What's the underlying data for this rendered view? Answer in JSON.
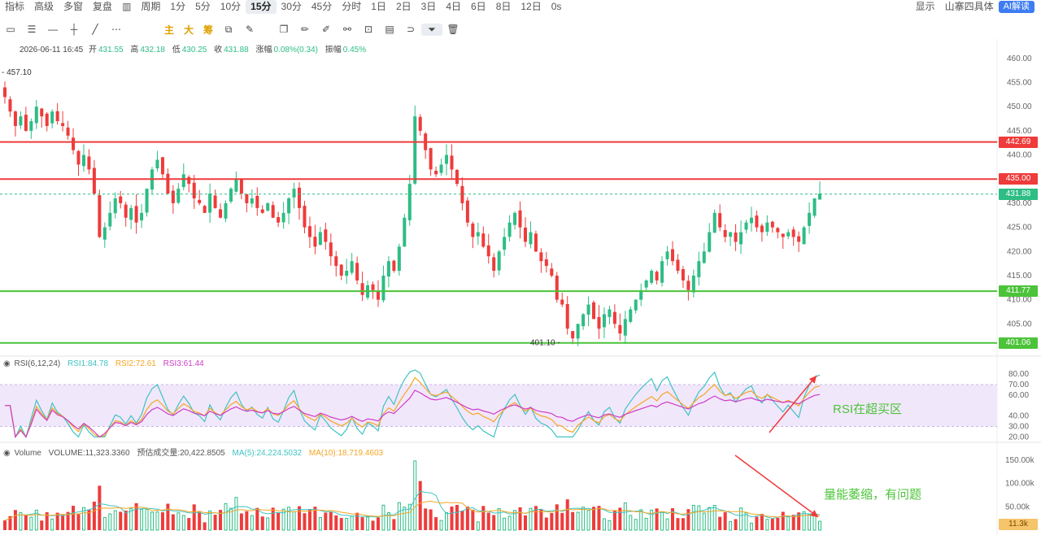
{
  "topbar": {
    "items": [
      "指标",
      "高级",
      "多窗",
      "复盘",
      "",
      "周期",
      "1分",
      "5分",
      "10分",
      "15分",
      "30分",
      "45分",
      "分时",
      "1日",
      "2日",
      "3日",
      "4日",
      "6日",
      "8日",
      "12日",
      "0s"
    ],
    "active_index": 9,
    "right_items": [
      "显示",
      "山寨四具体"
    ],
    "ai_button": "AI解读"
  },
  "toolbar": {
    "text_tools": [
      "主",
      "大",
      "筹"
    ]
  },
  "ohlc": {
    "date": "2026-06-11 16:45",
    "open_label": "开",
    "open": "431.55",
    "high_label": "高",
    "high": "432.18",
    "low_label": "低",
    "low": "430.25",
    "close_label": "收",
    "close": "431.88",
    "change_label": "涨幅",
    "change": "0.08%(0.34)",
    "amp_label": "振幅",
    "amp": "0.45%"
  },
  "price_axis": {
    "ticks": [
      "460.00",
      "455.00",
      "450.00",
      "445.00",
      "440.00",
      "430.00",
      "425.00",
      "420.00",
      "415.00",
      "410.00",
      "405.00"
    ],
    "tick_values": [
      460,
      455,
      450,
      445,
      440,
      430,
      425,
      420,
      415,
      410,
      405
    ],
    "range": [
      400,
      462
    ]
  },
  "levels": [
    {
      "label": "442.69",
      "value": 442.69,
      "color": "#ef3b3b"
    },
    {
      "label": "435.00",
      "value": 435.0,
      "color": "#ef3b3b"
    },
    {
      "label": "411.77",
      "value": 411.77,
      "color": "#4cc33a"
    },
    {
      "label": "401.06",
      "value": 401.06,
      "color": "#4cc33a"
    }
  ],
  "current_price": {
    "label": "431.88",
    "value": 431.88,
    "color": "#2dbd85"
  },
  "markers": {
    "high": "457.10",
    "low": "401.10"
  },
  "candles": {
    "up_color": "#2dbd85",
    "down_color": "#ef3b3b",
    "closes": [
      452,
      449,
      446,
      448,
      445,
      447,
      450,
      448,
      446,
      449,
      447,
      446,
      444,
      441,
      438,
      440,
      437,
      432,
      423,
      425,
      428,
      431,
      430,
      427,
      429,
      426,
      428,
      433,
      437,
      439,
      436,
      432,
      430,
      433,
      436,
      434,
      431,
      430,
      428,
      432,
      429,
      427,
      430,
      433,
      435,
      432,
      430,
      431,
      429,
      428,
      430,
      427,
      426,
      428,
      431,
      433,
      429,
      425,
      423,
      421,
      424,
      422,
      419,
      417,
      415,
      416,
      418,
      414,
      411,
      413,
      412,
      410,
      415,
      418,
      416,
      421,
      427,
      434,
      448,
      445,
      441,
      437,
      436,
      438,
      440,
      437,
      434,
      430,
      426,
      423,
      424,
      421,
      419,
      416,
      420,
      423,
      426,
      428,
      425,
      422,
      424,
      420,
      418,
      417,
      415,
      410,
      409,
      404,
      402,
      405,
      407,
      409,
      406,
      404,
      407,
      408,
      405,
      403,
      406,
      408,
      410,
      412,
      414,
      416,
      414,
      418,
      420,
      418,
      416,
      414,
      412,
      415,
      418,
      420,
      424,
      428,
      425,
      423,
      424,
      422,
      424,
      426,
      427,
      425,
      424,
      426,
      425,
      424,
      423,
      424,
      423,
      422,
      425,
      428,
      431,
      432
    ],
    "last_close": 431.88
  },
  "rsi": {
    "header": "RSI(6,12,24)",
    "rsi1_label": "RSI1:84.78",
    "rsi1_color": "#3fc3c3",
    "rsi2_label": "RSI2:72.61",
    "rsi2_color": "#f5a623",
    "rsi3_label": "RSI3:61.44",
    "rsi3_color": "#cf3cc6",
    "ticks": [
      "80.00",
      "70.00",
      "60.00",
      "40.00",
      "30.00",
      "20.00"
    ],
    "tick_values": [
      80,
      70,
      60,
      40,
      30,
      20
    ],
    "range": [
      18,
      84
    ],
    "band": [
      30,
      70
    ],
    "band_color": "#f1e7fb"
  },
  "volume": {
    "header": "Volume",
    "volume_label": "VOLUME:11,323.3360",
    "est_label": "预估成交量:20,422.8505",
    "ma5_label": "MA(5):24,224.5032",
    "ma5_color": "#3fc3c3",
    "ma10_label": "MA(10):18,719.4603",
    "ma10_color": "#f5a623",
    "ticks": [
      "150.00k",
      "100.00k",
      "50.00k"
    ],
    "tick_values": [
      150,
      100,
      50
    ],
    "current": "11.3k",
    "range": [
      0,
      160
    ]
  },
  "annotations": {
    "rsi_note": "RSI在超买区",
    "volume_note": "量能萎缩，有问题",
    "arrow_color": "#ef3b3b"
  }
}
